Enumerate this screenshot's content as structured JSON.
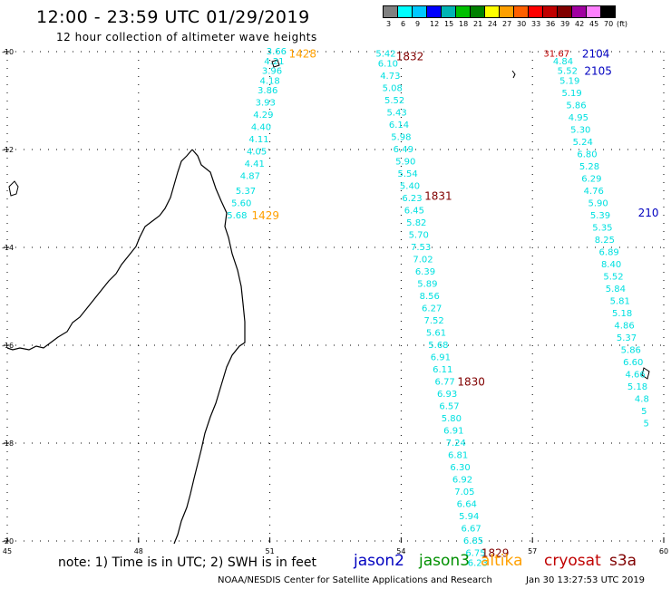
{
  "title": "12:00 - 23:59 UTC 01/29/2019",
  "subtitle": "12 hour collection of altimeter wave heights",
  "color_scale": {
    "unit": "(ft)",
    "labels": [
      "3",
      "6",
      "9",
      "12",
      "15",
      "18",
      "21",
      "24",
      "27",
      "30",
      "33",
      "36",
      "39",
      "42",
      "45",
      "70"
    ],
    "colors": [
      "#808080",
      "#00ffff",
      "#00c8ff",
      "#0000ff",
      "#00b4b4",
      "#00c000",
      "#008000",
      "#ffff00",
      "#ffa000",
      "#ff6000",
      "#ff0000",
      "#c00000",
      "#800000",
      "#a000a0",
      "#ff80ff",
      "#000000"
    ]
  },
  "axes": {
    "lat_ticks": [
      "-10",
      "-12",
      "-14",
      "-16",
      "-18",
      "-20"
    ],
    "lon_ticks": [
      "45",
      "48",
      "51",
      "54",
      "57",
      "60"
    ],
    "lat_range": [
      -20,
      -10
    ],
    "lon_range": [
      45,
      60
    ]
  },
  "tracks": [
    {
      "satellite": "altika",
      "color": "#00e0e0",
      "points": [
        {
          "lat": -10.0,
          "lon": 51.15,
          "swh": "3.66"
        },
        {
          "lat": -10.2,
          "lon": 51.1,
          "swh": "4.21"
        },
        {
          "lat": -10.4,
          "lon": 51.05,
          "swh": "3.96"
        },
        {
          "lat": -10.6,
          "lon": 51.0,
          "swh": "4.18"
        },
        {
          "lat": -10.8,
          "lon": 50.95,
          "swh": "3.86"
        },
        {
          "lat": -11.05,
          "lon": 50.9,
          "swh": "3.93"
        },
        {
          "lat": -11.3,
          "lon": 50.85,
          "swh": "4.29"
        },
        {
          "lat": -11.55,
          "lon": 50.8,
          "swh": "4.40"
        },
        {
          "lat": -11.8,
          "lon": 50.75,
          "swh": "4.11"
        },
        {
          "lat": -12.05,
          "lon": 50.7,
          "swh": "4.05"
        },
        {
          "lat": -12.3,
          "lon": 50.65,
          "swh": "4.41"
        },
        {
          "lat": -12.55,
          "lon": 50.55,
          "swh": "4.87"
        },
        {
          "lat": -12.85,
          "lon": 50.45,
          "swh": "5.37"
        },
        {
          "lat": -13.1,
          "lon": 50.35,
          "swh": "5.60"
        },
        {
          "lat": -13.35,
          "lon": 50.25,
          "swh": "5.68"
        }
      ]
    },
    {
      "satellite": "cryosat",
      "color": "#00e0e0",
      "points": [
        {
          "lat": -10.05,
          "lon": 53.65,
          "swh": "5.42"
        },
        {
          "lat": -10.25,
          "lon": 53.7,
          "swh": "6.10"
        },
        {
          "lat": -10.5,
          "lon": 53.75,
          "swh": "4.73"
        },
        {
          "lat": -10.75,
          "lon": 53.8,
          "swh": "5.08"
        },
        {
          "lat": -11.0,
          "lon": 53.85,
          "swh": "5.52"
        },
        {
          "lat": -11.25,
          "lon": 53.9,
          "swh": "5.43"
        },
        {
          "lat": -11.5,
          "lon": 53.95,
          "swh": "6.14"
        },
        {
          "lat": -11.75,
          "lon": 54.0,
          "swh": "5.98"
        },
        {
          "lat": -12.0,
          "lon": 54.05,
          "swh": "6.49"
        },
        {
          "lat": -12.25,
          "lon": 54.1,
          "swh": "5.90"
        },
        {
          "lat": -12.5,
          "lon": 54.15,
          "swh": "5.54"
        },
        {
          "lat": -12.75,
          "lon": 54.2,
          "swh": "5.40"
        },
        {
          "lat": -13.0,
          "lon": 54.25,
          "swh": "6.23"
        },
        {
          "lat": -13.25,
          "lon": 54.3,
          "swh": "6.45"
        },
        {
          "lat": -13.5,
          "lon": 54.35,
          "swh": "5.82"
        },
        {
          "lat": -13.75,
          "lon": 54.4,
          "swh": "5.70"
        },
        {
          "lat": -14.0,
          "lon": 54.45,
          "swh": "7.53"
        },
        {
          "lat": -14.25,
          "lon": 54.5,
          "swh": "7.02"
        },
        {
          "lat": -14.5,
          "lon": 54.55,
          "swh": "6.39"
        },
        {
          "lat": -14.75,
          "lon": 54.6,
          "swh": "5.89"
        },
        {
          "lat": -15.0,
          "lon": 54.65,
          "swh": "8.56"
        },
        {
          "lat": -15.25,
          "lon": 54.7,
          "swh": "6.27"
        },
        {
          "lat": -15.5,
          "lon": 54.75,
          "swh": "7.52"
        },
        {
          "lat": -15.75,
          "lon": 54.8,
          "swh": "5.61"
        },
        {
          "lat": -16.0,
          "lon": 54.85,
          "swh": "5.68"
        },
        {
          "lat": -16.25,
          "lon": 54.9,
          "swh": "6.91"
        },
        {
          "lat": -16.5,
          "lon": 54.95,
          "swh": "6.11"
        },
        {
          "lat": -16.75,
          "lon": 55.0,
          "swh": "6.77"
        },
        {
          "lat": -17.0,
          "lon": 55.05,
          "swh": "6.93"
        },
        {
          "lat": -17.25,
          "lon": 55.1,
          "swh": "6.57"
        },
        {
          "lat": -17.5,
          "lon": 55.15,
          "swh": "5.80"
        },
        {
          "lat": -17.75,
          "lon": 55.2,
          "swh": "6.91"
        },
        {
          "lat": -18.0,
          "lon": 55.25,
          "swh": "7.24"
        },
        {
          "lat": -18.25,
          "lon": 55.3,
          "swh": "6.81"
        },
        {
          "lat": -18.5,
          "lon": 55.35,
          "swh": "6.30"
        },
        {
          "lat": -18.75,
          "lon": 55.4,
          "swh": "6.92"
        },
        {
          "lat": -19.0,
          "lon": 55.45,
          "swh": "7.05"
        },
        {
          "lat": -19.25,
          "lon": 55.5,
          "swh": "6.64"
        },
        {
          "lat": -19.5,
          "lon": 55.55,
          "swh": "5.94"
        },
        {
          "lat": -19.75,
          "lon": 55.6,
          "swh": "6.67"
        },
        {
          "lat": -20.0,
          "lon": 55.65,
          "swh": "6.85"
        },
        {
          "lat": -20.25,
          "lon": 55.7,
          "swh": "6.75"
        },
        {
          "lat": -20.45,
          "lon": 55.75,
          "swh": "6.23"
        }
      ]
    },
    {
      "satellite": "jason2",
      "color": "#00e0e0",
      "points": [
        {
          "lat": -10.2,
          "lon": 57.7,
          "swh": "4.84"
        },
        {
          "lat": -10.4,
          "lon": 57.8,
          "swh": "5.52"
        },
        {
          "lat": -10.6,
          "lon": 57.85,
          "swh": "5.19"
        },
        {
          "lat": -10.85,
          "lon": 57.9,
          "swh": "5.19"
        },
        {
          "lat": -11.1,
          "lon": 58.0,
          "swh": "5.86"
        },
        {
          "lat": -11.35,
          "lon": 58.05,
          "swh": "4.95"
        },
        {
          "lat": -11.6,
          "lon": 58.1,
          "swh": "5.30"
        },
        {
          "lat": -11.85,
          "lon": 58.15,
          "swh": "5.24"
        },
        {
          "lat": -12.1,
          "lon": 58.25,
          "swh": "6.80"
        },
        {
          "lat": -12.35,
          "lon": 58.3,
          "swh": "5.28"
        },
        {
          "lat": -12.6,
          "lon": 58.35,
          "swh": "6.29"
        },
        {
          "lat": -12.85,
          "lon": 58.4,
          "swh": "4.76"
        },
        {
          "lat": -13.1,
          "lon": 58.5,
          "swh": "5.90"
        },
        {
          "lat": -13.35,
          "lon": 58.55,
          "swh": "5.39"
        },
        {
          "lat": -13.6,
          "lon": 58.6,
          "swh": "5.35"
        },
        {
          "lat": -13.85,
          "lon": 58.65,
          "swh": "8.25"
        },
        {
          "lat": -14.1,
          "lon": 58.75,
          "swh": "6.89"
        },
        {
          "lat": -14.35,
          "lon": 58.8,
          "swh": "8.40"
        },
        {
          "lat": -14.6,
          "lon": 58.85,
          "swh": "5.52"
        },
        {
          "lat": -14.85,
          "lon": 58.9,
          "swh": "5.84"
        },
        {
          "lat": -15.1,
          "lon": 59.0,
          "swh": "5.81"
        },
        {
          "lat": -15.35,
          "lon": 59.05,
          "swh": "5.18"
        },
        {
          "lat": -15.6,
          "lon": 59.1,
          "swh": "4.86"
        },
        {
          "lat": -15.85,
          "lon": 59.15,
          "swh": "5.37"
        },
        {
          "lat": -16.1,
          "lon": 59.25,
          "swh": "5.86"
        },
        {
          "lat": -16.35,
          "lon": 59.3,
          "swh": "6.60"
        },
        {
          "lat": -16.6,
          "lon": 59.35,
          "swh": "4.66"
        },
        {
          "lat": -16.85,
          "lon": 59.4,
          "swh": "5.18"
        },
        {
          "lat": -17.1,
          "lon": 59.5,
          "swh": "4.8"
        },
        {
          "lat": -17.35,
          "lon": 59.55,
          "swh": "5"
        },
        {
          "lat": -17.6,
          "lon": 59.6,
          "swh": "5"
        }
      ]
    },
    {
      "satellite": "jason2",
      "color": "#c00000",
      "points": [
        {
          "lat": -10.05,
          "lon": 57.55,
          "swh": "31.67"
        }
      ]
    }
  ],
  "time_labels": [
    {
      "text": "1428",
      "lat": -10.05,
      "lon": 51.75,
      "color": "#ffa000"
    },
    {
      "text": "1429",
      "lat": -13.35,
      "lon": 50.9,
      "color": "#ffa000"
    },
    {
      "text": "1832",
      "lat": -10.1,
      "lon": 54.2,
      "color": "#800000"
    },
    {
      "text": "1831",
      "lat": -12.95,
      "lon": 54.85,
      "color": "#800000"
    },
    {
      "text": "1830",
      "lat": -16.75,
      "lon": 55.6,
      "color": "#800000"
    },
    {
      "text": "1829",
      "lat": -20.25,
      "lon": 56.15,
      "color": "#800000"
    },
    {
      "text": "2104",
      "lat": -10.05,
      "lon": 58.45,
      "color": "#0000c0"
    },
    {
      "text": "2105",
      "lat": -10.4,
      "lon": 58.5,
      "color": "#0000c0"
    },
    {
      "text": "210",
      "lat": -13.3,
      "lon": 59.65,
      "color": "#0000c0"
    }
  ],
  "footer": {
    "note": "note: 1) Time is in UTC; 2) SWH is in feet",
    "satellites": [
      {
        "name": "jason2",
        "color": "#0000c0"
      },
      {
        "name": "jason3",
        "color": "#009000"
      },
      {
        "name": "altika",
        "color": "#ffa000"
      },
      {
        "name": "cryosat",
        "color": "#c00000"
      },
      {
        "name": "s3a",
        "color": "#800000"
      }
    ],
    "credit": "NOAA/NESDIS Center for Satellite Applications and Research",
    "timestamp": "Jan 30 13:27:53 UTC 2019"
  }
}
